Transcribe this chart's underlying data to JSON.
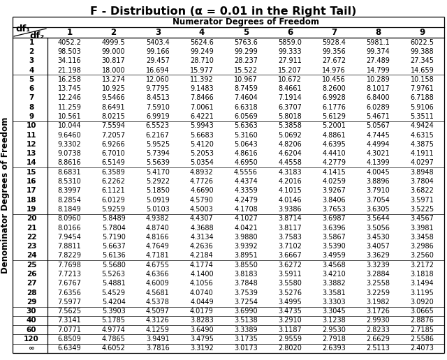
{
  "title": "F - Distribution (α = 0.01 in the Right Tail)",
  "col_header_label": "Numerator Degrees of Freedom",
  "row_header_label": "Denominator Degrees of Freedom",
  "df1_values": [
    "1",
    "2",
    "3",
    "4",
    "5",
    "6",
    "7",
    "8",
    "9"
  ],
  "df2_values": [
    "1",
    "2",
    "3",
    "4",
    "5",
    "6",
    "7",
    "8",
    "9",
    "10",
    "11",
    "12",
    "13",
    "14",
    "15",
    "16",
    "17",
    "18",
    "19",
    "20",
    "21",
    "22",
    "23",
    "24",
    "25",
    "26",
    "27",
    "28",
    "29",
    "30",
    "40",
    "60",
    "120",
    "∞"
  ],
  "table_data_str": [
    [
      "4052.2",
      "4999.5",
      "5403.4",
      "5624.6",
      "5763.6",
      "5859.0",
      "5928.4",
      "5981.1",
      "6022.5"
    ],
    [
      "98.503",
      "99.000",
      "99.166",
      "99.249",
      "99.299",
      "99.333",
      "99.356",
      "99.374",
      "99.388"
    ],
    [
      "34.116",
      "30.817",
      "29.457",
      "28.710",
      "28.237",
      "27.911",
      "27.672",
      "27.489",
      "27.345"
    ],
    [
      "21.198",
      "18.000",
      "16.694",
      "15.977",
      "15.522",
      "15.207",
      "14.976",
      "14.799",
      "14.659"
    ],
    [
      "16.258",
      "13.274",
      "12.060",
      "11.392",
      "10.967",
      "10.672",
      "10.456",
      "10.289",
      "10.158"
    ],
    [
      "13.745",
      "10.925",
      "9.7795",
      "9.1483",
      "8.7459",
      "8.4661",
      "8.2600",
      "8.1017",
      "7.9761"
    ],
    [
      "12.246",
      "9.5466",
      "8.4513",
      "7.8466",
      "7.4604",
      "7.1914",
      "6.9928",
      "6.8400",
      "6.7188"
    ],
    [
      "11.259",
      "8.6491",
      "7.5910",
      "7.0061",
      "6.6318",
      "6.3707",
      "6.1776",
      "6.0289",
      "5.9106"
    ],
    [
      "10.561",
      "8.0215",
      "6.9919",
      "6.4221",
      "6.0569",
      "5.8018",
      "5.6129",
      "5.4671",
      "5.3511"
    ],
    [
      "10.044",
      "7.5594",
      "6.5523",
      "5.9943",
      "5.6363",
      "5.3858",
      "5.2001",
      "5.0567",
      "4.9424"
    ],
    [
      "9.6460",
      "7.2057",
      "6.2167",
      "5.6683",
      "5.3160",
      "5.0692",
      "4.8861",
      "4.7445",
      "4.6315"
    ],
    [
      "9.3302",
      "6.9266",
      "5.9525",
      "5.4120",
      "5.0643",
      "4.8206",
      "4.6395",
      "4.4994",
      "4.3875"
    ],
    [
      "9.0738",
      "6.7010",
      "5.7394",
      "5.2053",
      "4.8616",
      "4.6204",
      "4.4410",
      "4.3021",
      "4.1911"
    ],
    [
      "8.8616",
      "6.5149",
      "5.5639",
      "5.0354",
      "4.6950",
      "4.4558",
      "4.2779",
      "4.1399",
      "4.0297"
    ],
    [
      "8.6831",
      "6.3589",
      "5.4170",
      "4.8932",
      "4.5556",
      "4.3183",
      "4.1415",
      "4.0045",
      "3.8948"
    ],
    [
      "8.5310",
      "6.2262",
      "5.2922",
      "4.7726",
      "4.4374",
      "4.2016",
      "4.0259",
      "3.8896",
      "3.7804"
    ],
    [
      "8.3997",
      "6.1121",
      "5.1850",
      "4.6690",
      "4.3359",
      "4.1015",
      "3.9267",
      "3.7910",
      "3.6822"
    ],
    [
      "8.2854",
      "6.0129",
      "5.0919",
      "4.5790",
      "4.2479",
      "4.0146",
      "3.8406",
      "3.7054",
      "3.5971"
    ],
    [
      "8.1849",
      "5.9259",
      "5.0103",
      "4.5003",
      "4.1708",
      "3.9386",
      "3.7653",
      "3.6305",
      "3.5225"
    ],
    [
      "8.0960",
      "5.8489",
      "4.9382",
      "4.4307",
      "4.1027",
      "3.8714",
      "3.6987",
      "3.5644",
      "3.4567"
    ],
    [
      "8.0166",
      "5.7804",
      "4.8740",
      "4.3688",
      "4.0421",
      "3.8117",
      "3.6396",
      "3.5056",
      "3.3981"
    ],
    [
      "7.9454",
      "5.7190",
      "4.8166",
      "4.3134",
      "3.9880",
      "3.7583",
      "3.5867",
      "3.4530",
      "3.3458"
    ],
    [
      "7.8811",
      "5.6637",
      "4.7649",
      "4.2636",
      "3.9392",
      "3.7102",
      "3.5390",
      "3.4057",
      "3.2986"
    ],
    [
      "7.8229",
      "5.6136",
      "4.7181",
      "4.2184",
      "3.8951",
      "3.6667",
      "3.4959",
      "3.3629",
      "3.2560"
    ],
    [
      "7.7698",
      "5.5680",
      "4.6755",
      "4.1774",
      "3.8550",
      "3.6272",
      "3.4568",
      "3.3239",
      "3.2172"
    ],
    [
      "7.7213",
      "5.5263",
      "4.6366",
      "4.1400",
      "3.8183",
      "3.5911",
      "3.4210",
      "3.2884",
      "3.1818"
    ],
    [
      "7.6767",
      "5.4881",
      "4.6009",
      "4.1056",
      "3.7848",
      "3.5580",
      "3.3882",
      "3.2558",
      "3.1494"
    ],
    [
      "7.6356",
      "5.4529",
      "4.5681",
      "4.0740",
      "3.7539",
      "3.5276",
      "3.3581",
      "3.2259",
      "3.1195"
    ],
    [
      "7.5977",
      "5.4204",
      "4.5378",
      "4.0449",
      "3.7254",
      "3.4995",
      "3.3303",
      "3.1982",
      "3.0920"
    ],
    [
      "7.5625",
      "5.3903",
      "4.5097",
      "4.0179",
      "3.6990",
      "3.4735",
      "3.3045",
      "3.1726",
      "3.0665"
    ],
    [
      "7.3141",
      "5.1785",
      "4.3126",
      "3.8283",
      "3.5138",
      "3.2910",
      "3.1238",
      "2.9930",
      "2.8876"
    ],
    [
      "7.0771",
      "4.9774",
      "4.1259",
      "3.6490",
      "3.3389",
      "3.1187",
      "2.9530",
      "2.8233",
      "2.7185"
    ],
    [
      "6.8509",
      "4.7865",
      "3.9491",
      "3.4795",
      "3.1735",
      "2.9559",
      "2.7918",
      "2.6629",
      "2.5586"
    ],
    [
      "6.6349",
      "4.6052",
      "3.7816",
      "3.3192",
      "3.0173",
      "2.8020",
      "2.6393",
      "2.5113",
      "2.4073"
    ]
  ],
  "bg_color": "#ffffff",
  "text_color": "#000000",
  "line_color": "#000000",
  "group_breaks_after": [
    3,
    8,
    13,
    18,
    23,
    28,
    29,
    30,
    31,
    32
  ],
  "title_fontsize": 11.5,
  "header_fontsize": 8.5,
  "cell_fontsize": 7.0,
  "label_fontsize": 7.5
}
